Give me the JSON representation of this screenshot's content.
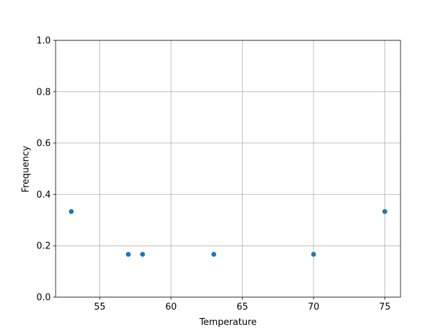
{
  "chart_data": {
    "type": "scatter",
    "title": "",
    "xlabel": "Temperature",
    "ylabel": "Frequency",
    "xlim": [
      51.9,
      76.1
    ],
    "ylim": [
      0.0,
      1.0
    ],
    "xticks": [
      55,
      60,
      65,
      70,
      75
    ],
    "yticks": [
      0.0,
      0.2,
      0.4,
      0.6,
      0.8,
      1.0
    ],
    "xtick_labels": [
      "55",
      "60",
      "65",
      "70",
      "75"
    ],
    "ytick_labels": [
      "0.0",
      "0.2",
      "0.4",
      "0.6",
      "0.8",
      "1.0"
    ],
    "grid": true,
    "x": [
      53,
      57,
      58,
      63,
      70,
      75
    ],
    "y": [
      0.3333,
      0.1667,
      0.1667,
      0.1667,
      0.1667,
      0.3333
    ],
    "color": "#1f77b4"
  }
}
